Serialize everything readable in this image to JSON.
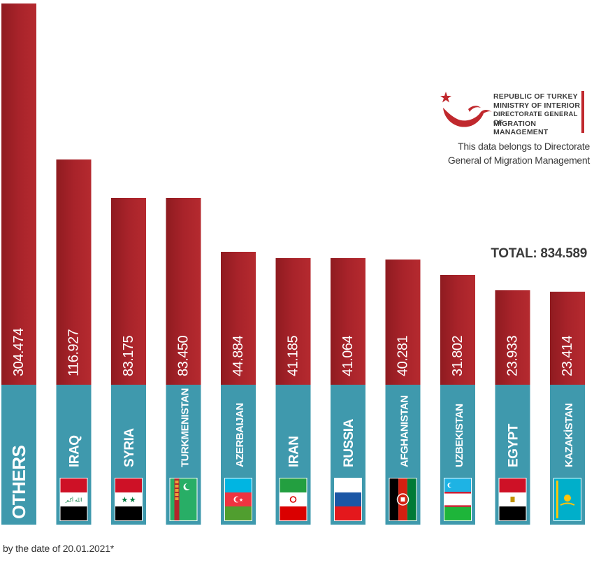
{
  "logo": {
    "lines": [
      "REPUBLIC OF TURKEY",
      "MINISTRY OF INTERIOR",
      "DIRECTORATE GENERAL OF",
      "MIGRATION MANAGEMENT"
    ]
  },
  "source_note": {
    "line1": "This data belongs to Directorate",
    "line2": "General of Migration Management"
  },
  "total_label": "TOTAL: 834.589",
  "footnote": "by the date of 20.01.2021*",
  "colors": {
    "bar_red": "#9e1f24",
    "bar_red_light": "#b8262b",
    "base_teal": "#3f99ad"
  },
  "chart_data": {
    "type": "bar",
    "categories": [
      "OTHERS",
      "IRAQ",
      "SYRIA",
      "TURKMENISTAN",
      "AZERBAIJAN",
      "IRAN",
      "RUSSIA",
      "AFGHANISTAN",
      "UZBEKISTAN",
      "EGYPT",
      "KAZAKİSTAN"
    ],
    "values": [
      304474,
      116927,
      83175,
      83450,
      44884,
      41185,
      41064,
      40281,
      31802,
      23933,
      23414
    ],
    "value_labels": [
      "304.474",
      "116.927",
      "83.175",
      "83.450",
      "44.884",
      "41.185",
      "41.064",
      "40.281",
      "31.802",
      "23.933",
      "23.414"
    ],
    "flags": [
      "",
      "iraq-flag",
      "syria-flag",
      "turkmenistan-flag",
      "azerbaijan-flag",
      "iran-flag",
      "russia-flag",
      "afghanistan-flag",
      "uzbekistan-flag",
      "egypt-flag",
      "kazakhstan-flag"
    ],
    "title": "",
    "xlabel": "",
    "ylabel": ""
  }
}
